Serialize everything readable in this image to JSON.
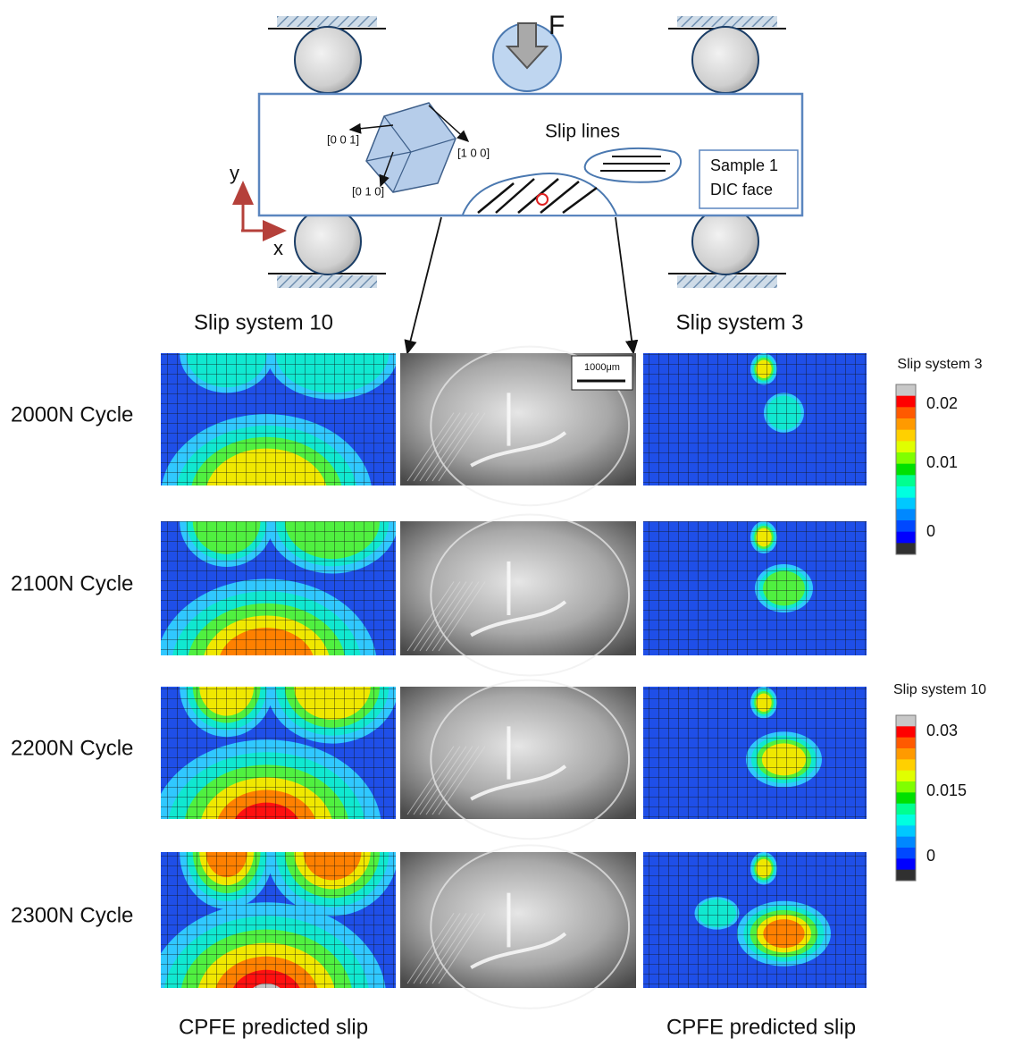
{
  "schematic": {
    "force_label": "F",
    "axis_y": "y",
    "axis_x": "x",
    "directions": [
      "[0 0 1]",
      "[1 0 0]",
      "[0 1 0]"
    ],
    "slip_lines_label": "Slip lines",
    "sample_label": [
      "Sample 1",
      "DIC face"
    ]
  },
  "column_headers": [
    "Slip system 10",
    "Slip system 3"
  ],
  "rows": [
    "2000N Cycle",
    "2100N Cycle",
    "2200N Cycle",
    "2300N Cycle"
  ],
  "scale_bar": "1000μm",
  "colorbars": [
    {
      "title": "Slip system 3",
      "ticks": [
        "0.02",
        "0.01",
        "0"
      ]
    },
    {
      "title": "Slip system 10",
      "ticks": [
        "0.03",
        "0.015",
        "0"
      ]
    }
  ],
  "footers": [
    "CPFE predicted slip",
    "CPFE predicted slip"
  ]
}
